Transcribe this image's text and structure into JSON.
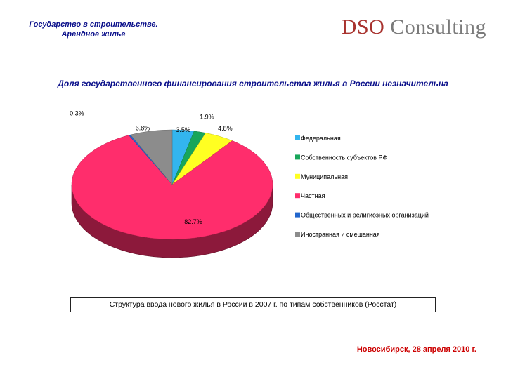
{
  "header": {
    "title_line1": "Государство в строительстве.",
    "title_line2": "Арендное жилье",
    "logo_part1": "DSO",
    "logo_part2": " Consulting"
  },
  "headline": "Доля государственного финансирования строительства жилья в России незначительна",
  "chart_data": {
    "type": "pie",
    "title": "",
    "slices": [
      {
        "label": "Федеральная",
        "value": 3.5,
        "value_label": "3.5%",
        "color": "#33b5ee"
      },
      {
        "label": "Собственность субъектов РФ",
        "value": 1.9,
        "value_label": "1.9%",
        "color": "#18a65a"
      },
      {
        "label": "Муниципальная",
        "value": 4.8,
        "value_label": "4.8%",
        "color": "#ffff22"
      },
      {
        "label": "Частная",
        "value": 82.7,
        "value_label": "82.7%",
        "color": "#ff2d6c"
      },
      {
        "label": "Общественных и религиозных организаций",
        "value": 0.3,
        "value_label": "0.3%",
        "color": "#2266cc"
      },
      {
        "label": "Иностранная и смешанная",
        "value": 6.8,
        "value_label": "6.8%",
        "color": "#8c8c8c"
      }
    ],
    "legend_position": "right",
    "style": "3d"
  },
  "caption": "Структура ввода нового жилья в России в 2007 г. по типам собственников (Росстат)",
  "footer": "Новосибирск, 28 апреля 2010 г."
}
